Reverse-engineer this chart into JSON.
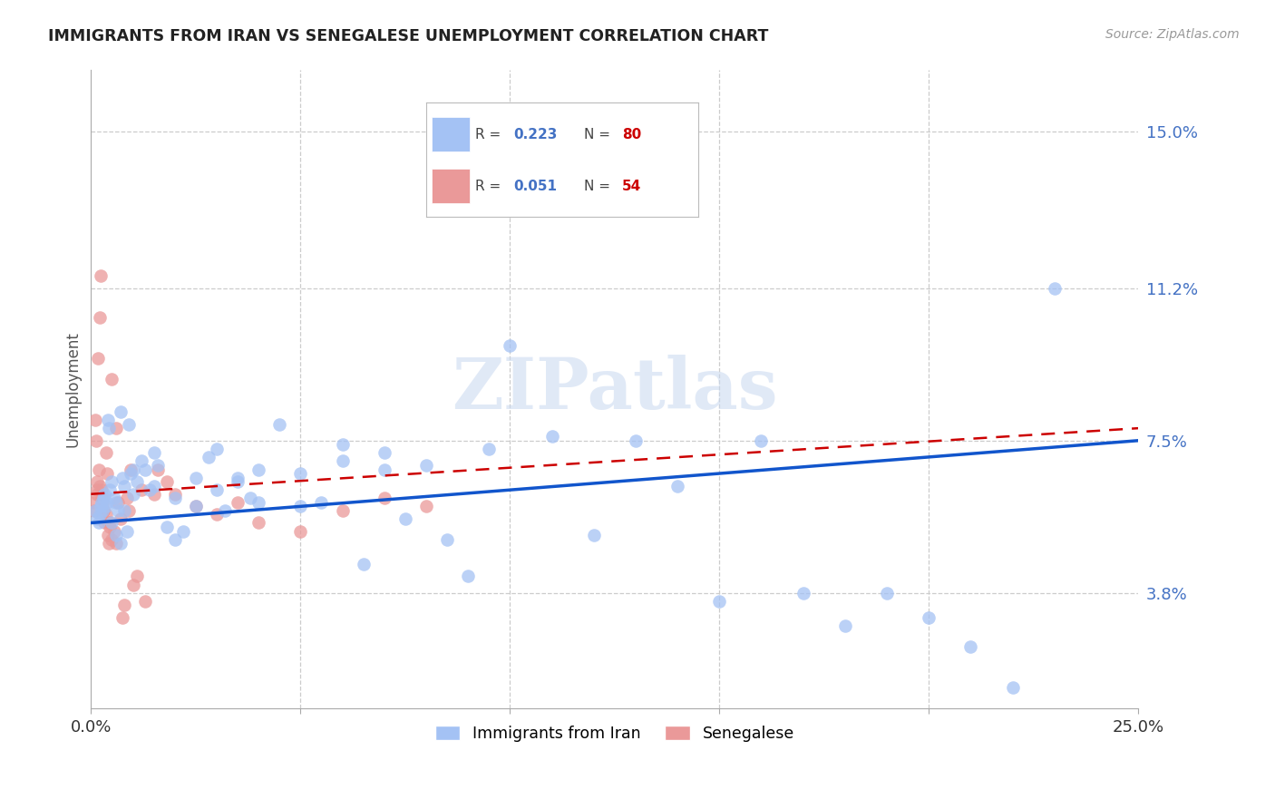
{
  "title": "IMMIGRANTS FROM IRAN VS SENEGALESE UNEMPLOYMENT CORRELATION CHART",
  "source": "Source: ZipAtlas.com",
  "ylabel": "Unemployment",
  "ytick_values": [
    3.8,
    7.5,
    11.2,
    15.0
  ],
  "xlim": [
    0.0,
    25.0
  ],
  "ylim": [
    1.0,
    16.5
  ],
  "legend1_label": "Immigrants from Iran",
  "legend2_label": "Senegalese",
  "r1": "0.223",
  "n1": "80",
  "r2": "0.051",
  "n2": "54",
  "blue_color": "#a4c2f4",
  "pink_color": "#ea9999",
  "line_blue": "#1155cc",
  "line_pink": "#cc0000",
  "watermark_text": "ZIPatlas",
  "blue_line_start_y": 5.5,
  "blue_line_end_y": 7.5,
  "pink_line_start_y": 6.2,
  "pink_line_end_y": 7.8,
  "blue_x": [
    0.1,
    0.15,
    0.18,
    0.2,
    0.22,
    0.25,
    0.28,
    0.3,
    0.32,
    0.35,
    0.38,
    0.4,
    0.42,
    0.45,
    0.5,
    0.55,
    0.6,
    0.65,
    0.7,
    0.75,
    0.8,
    0.85,
    0.9,
    0.95,
    1.0,
    1.1,
    1.2,
    1.3,
    1.4,
    1.5,
    1.6,
    1.8,
    2.0,
    2.2,
    2.5,
    2.8,
    3.0,
    3.2,
    3.5,
    3.8,
    4.0,
    4.5,
    5.0,
    5.5,
    6.0,
    6.5,
    7.0,
    7.5,
    8.0,
    8.5,
    9.0,
    9.5,
    10.0,
    11.0,
    12.0,
    13.0,
    14.0,
    15.0,
    16.0,
    17.0,
    18.0,
    19.0,
    20.0,
    21.0,
    22.0,
    23.0,
    0.5,
    0.6,
    0.7,
    0.8,
    1.0,
    1.5,
    2.0,
    2.5,
    3.0,
    3.5,
    4.0,
    5.0,
    6.0,
    7.0
  ],
  "blue_y": [
    5.8,
    5.6,
    5.5,
    5.7,
    5.9,
    6.0,
    5.8,
    6.1,
    6.2,
    5.9,
    6.0,
    8.0,
    7.8,
    6.3,
    6.5,
    6.1,
    6.0,
    5.8,
    8.2,
    6.6,
    6.4,
    5.3,
    7.9,
    6.7,
    6.8,
    6.5,
    7.0,
    6.8,
    6.3,
    7.2,
    6.9,
    5.4,
    5.1,
    5.3,
    6.6,
    7.1,
    7.3,
    5.8,
    6.6,
    6.1,
    6.8,
    7.9,
    6.7,
    6.0,
    7.4,
    4.5,
    7.2,
    5.6,
    6.9,
    5.1,
    4.2,
    7.3,
    9.8,
    7.6,
    5.2,
    7.5,
    6.4,
    3.6,
    7.5,
    3.8,
    3.0,
    3.8,
    3.2,
    2.5,
    1.5,
    11.2,
    5.5,
    5.2,
    5.0,
    5.8,
    6.2,
    6.4,
    6.1,
    5.9,
    6.3,
    6.5,
    6.0,
    5.9,
    7.0,
    6.8
  ],
  "pink_x": [
    0.05,
    0.08,
    0.1,
    0.12,
    0.14,
    0.15,
    0.17,
    0.18,
    0.2,
    0.22,
    0.25,
    0.27,
    0.3,
    0.32,
    0.35,
    0.38,
    0.4,
    0.42,
    0.45,
    0.48,
    0.5,
    0.55,
    0.6,
    0.65,
    0.7,
    0.75,
    0.8,
    0.85,
    0.9,
    0.95,
    1.0,
    1.1,
    1.2,
    1.3,
    1.5,
    1.6,
    1.8,
    2.0,
    2.5,
    3.0,
    3.5,
    4.0,
    5.0,
    6.0,
    7.0,
    8.0,
    0.15,
    0.25,
    0.35,
    0.45,
    0.2,
    0.3,
    0.4,
    0.6
  ],
  "pink_y": [
    6.0,
    5.8,
    8.0,
    7.5,
    6.5,
    6.2,
    9.5,
    6.8,
    10.5,
    11.5,
    6.3,
    6.0,
    5.8,
    5.5,
    7.2,
    6.7,
    5.2,
    5.0,
    5.4,
    5.1,
    9.0,
    5.3,
    7.8,
    6.0,
    5.6,
    3.2,
    3.5,
    6.1,
    5.8,
    6.8,
    4.0,
    4.2,
    6.3,
    3.6,
    6.2,
    6.8,
    6.5,
    6.2,
    5.9,
    5.7,
    6.0,
    5.5,
    5.3,
    5.8,
    6.1,
    5.9,
    6.3,
    6.1,
    5.7,
    5.5,
    6.4,
    5.8,
    5.5,
    5.0
  ]
}
